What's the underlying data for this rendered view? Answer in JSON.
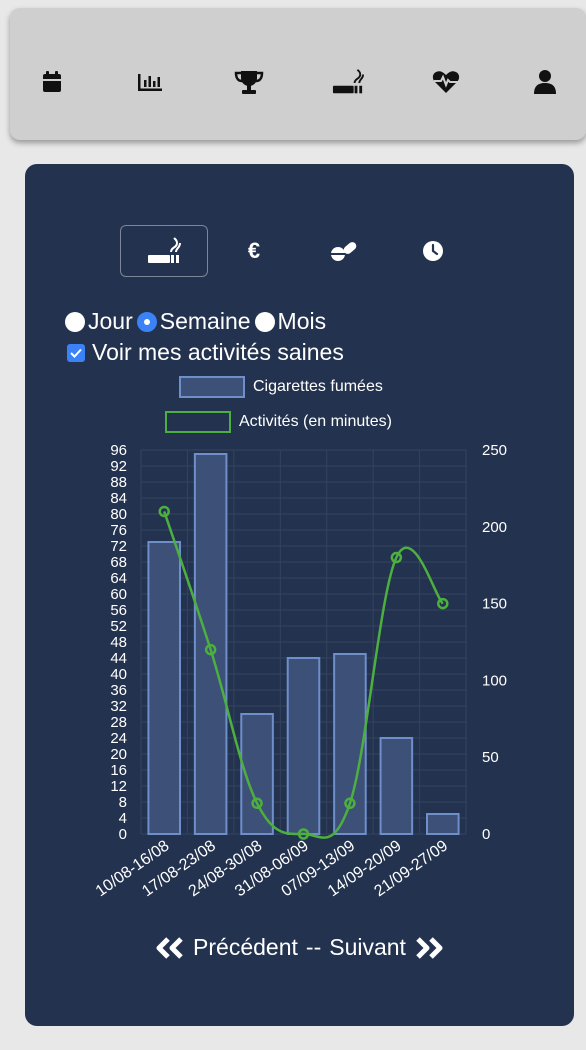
{
  "nav": {
    "items": [
      {
        "name": "calendar-icon"
      },
      {
        "name": "bar-chart-icon"
      },
      {
        "name": "trophy-icon"
      },
      {
        "name": "smoking-icon"
      },
      {
        "name": "heartbeat-icon"
      },
      {
        "name": "user-icon"
      }
    ]
  },
  "tabs": [
    {
      "name": "smoking-icon",
      "active": true
    },
    {
      "name": "euro-icon",
      "label": "€",
      "active": false
    },
    {
      "name": "pills-icon",
      "active": false
    },
    {
      "name": "clock-icon",
      "active": false
    }
  ],
  "period": {
    "options": [
      "Jour",
      "Semaine",
      "Mois"
    ],
    "selected": "Semaine"
  },
  "healthy_toggle": {
    "label": "Voir mes activités saines",
    "checked": true
  },
  "colors": {
    "card_bg": "#23324e",
    "bar_fill": "#3d5077",
    "bar_border": "#6f8fcb",
    "line": "#4caf3f",
    "grid": "#34445f"
  },
  "chart_data": {
    "type": "bar",
    "categories": [
      "10/08-16/08",
      "17/08-23/08",
      "24/08-30/08",
      "31/08-06/09",
      "07/09-13/09",
      "14/09-20/09",
      "21/09-27/09"
    ],
    "series": [
      {
        "name": "Cigarettes fumées",
        "type": "bar",
        "axis": "left",
        "values": [
          73,
          95,
          30,
          44,
          45,
          24,
          5
        ]
      },
      {
        "name": "Activités (en minutes)",
        "type": "line",
        "axis": "right",
        "values": [
          210,
          120,
          20,
          0,
          20,
          180,
          150
        ]
      }
    ],
    "y_left": {
      "min": 0,
      "max": 96,
      "step": 4
    },
    "y_right": {
      "min": 0,
      "max": 250,
      "ticks": [
        0,
        50,
        100,
        150,
        200,
        250
      ]
    },
    "legend": [
      "Cigarettes fumées",
      "Activités (en minutes)"
    ],
    "legend_position": "top",
    "grid": true
  },
  "pager": {
    "prev_label": "Précédent",
    "separator": "--",
    "next_label": "Suivant"
  }
}
